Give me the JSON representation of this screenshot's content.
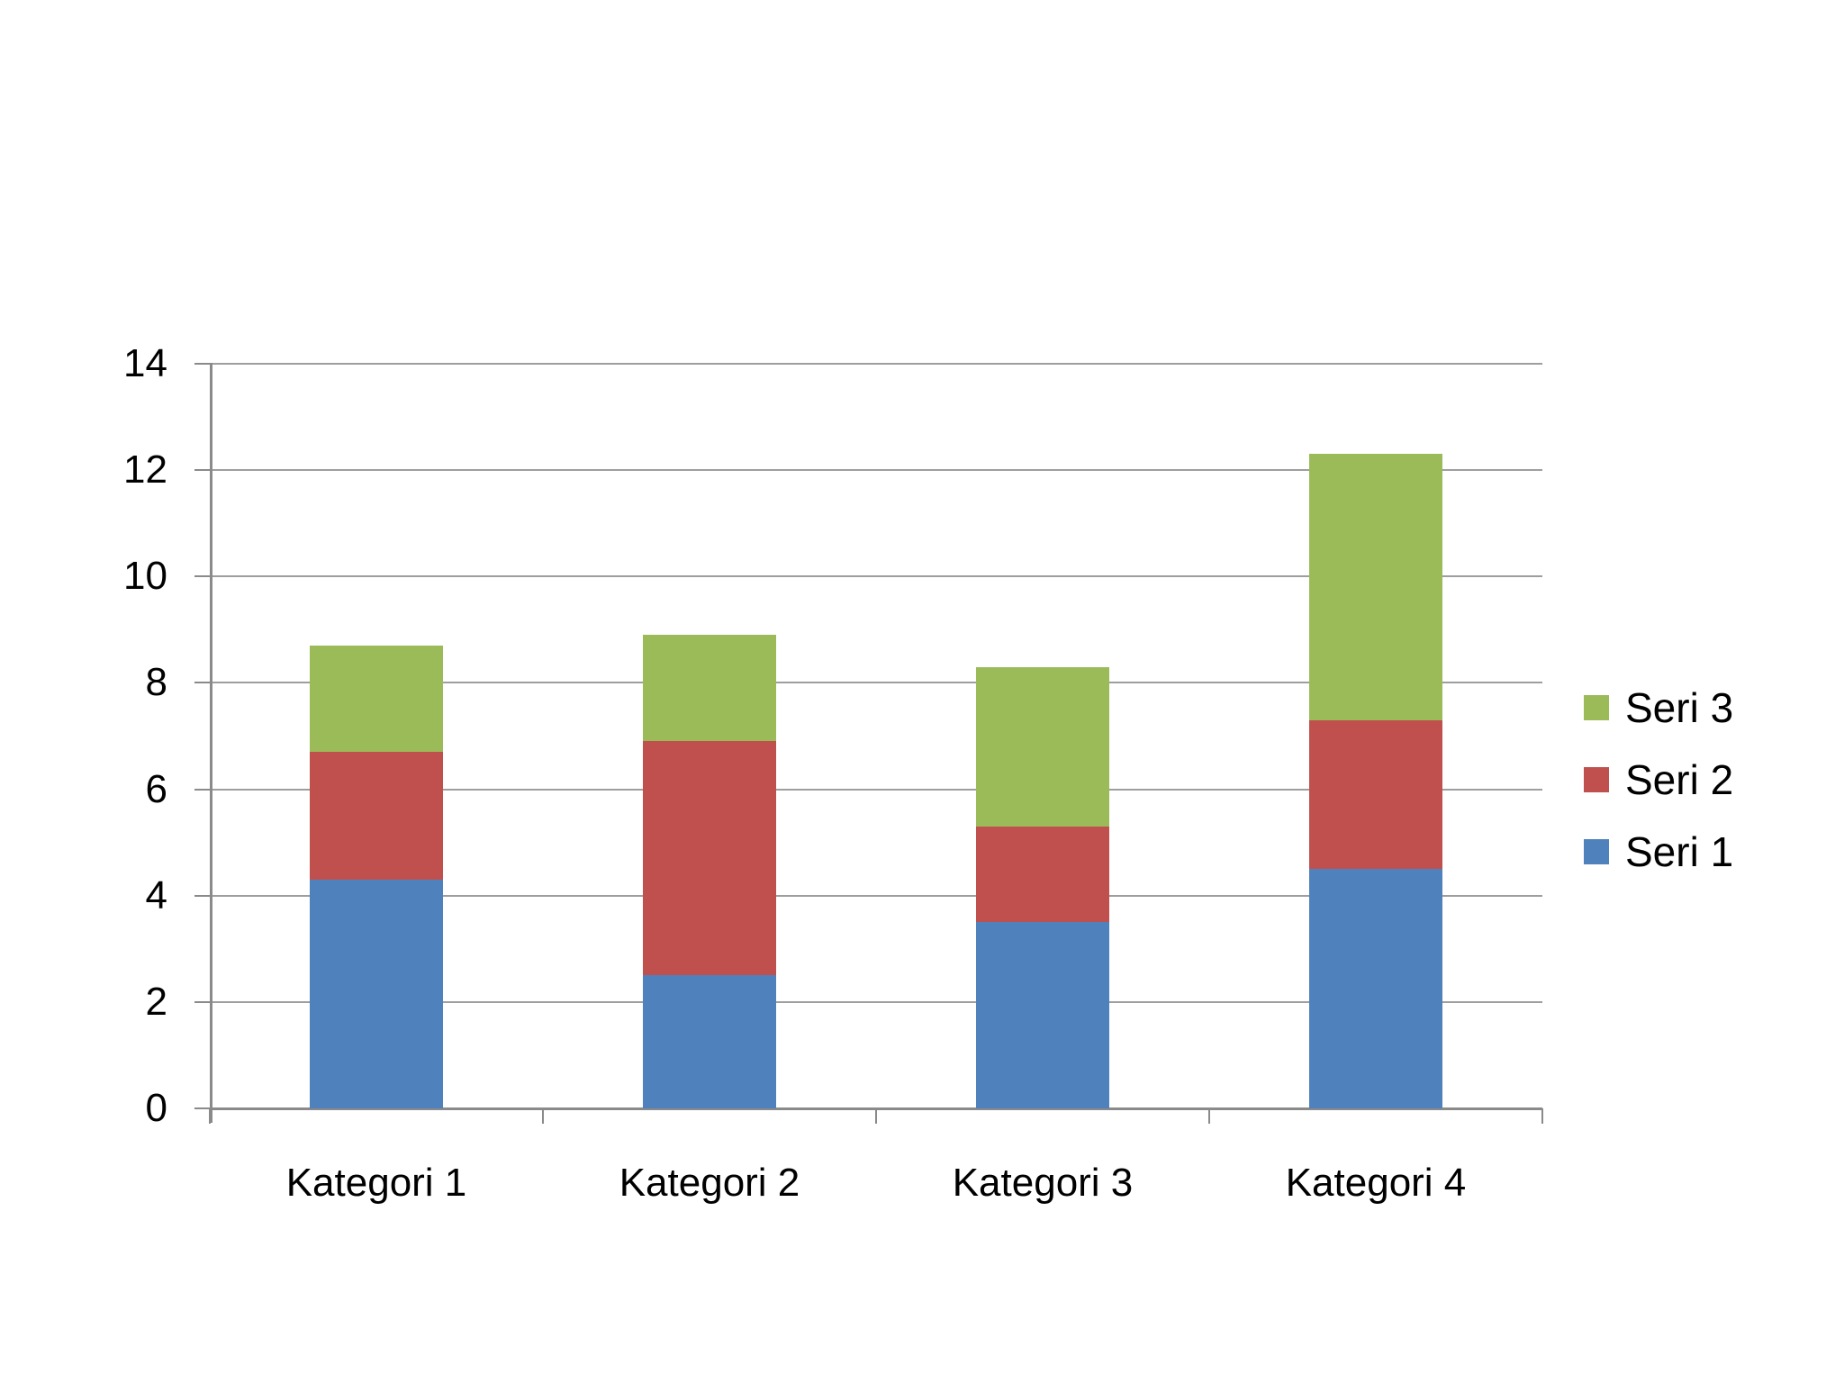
{
  "chart_data": {
    "type": "bar",
    "stacked": true,
    "title": "",
    "xlabel": "",
    "ylabel": "",
    "categories": [
      "Kategori 1",
      "Kategori 2",
      "Kategori 3",
      "Kategori 4"
    ],
    "series": [
      {
        "name": "Seri 1",
        "color": "#4F81BD",
        "values": [
          4.3,
          2.5,
          3.5,
          4.5
        ]
      },
      {
        "name": "Seri 2",
        "color": "#C0504D",
        "values": [
          2.4,
          4.4,
          1.8,
          2.8
        ]
      },
      {
        "name": "Seri 3",
        "color": "#9BBB59",
        "values": [
          2.0,
          2.0,
          3.0,
          5.0
        ]
      }
    ],
    "stack_totals": [
      8.7,
      8.9,
      8.3,
      12.3
    ],
    "ylim": [
      0,
      14
    ],
    "yticks": [
      0,
      2,
      4,
      6,
      8,
      10,
      12,
      14
    ],
    "ytick_labels": [
      "0",
      "2",
      "4",
      "6",
      "8",
      "10",
      "12",
      "14"
    ],
    "grid": true,
    "legend_position": "right",
    "legend_order": [
      "Seri 3",
      "Seri 2",
      "Seri 1"
    ]
  },
  "colors": {
    "background": "#FFFFFF",
    "gridline": "#9E9E9E",
    "axis": "#8A8A8A",
    "text": "#000000",
    "seri1": "#4F81BD",
    "seri2": "#C0504D",
    "seri3": "#9BBB59"
  }
}
